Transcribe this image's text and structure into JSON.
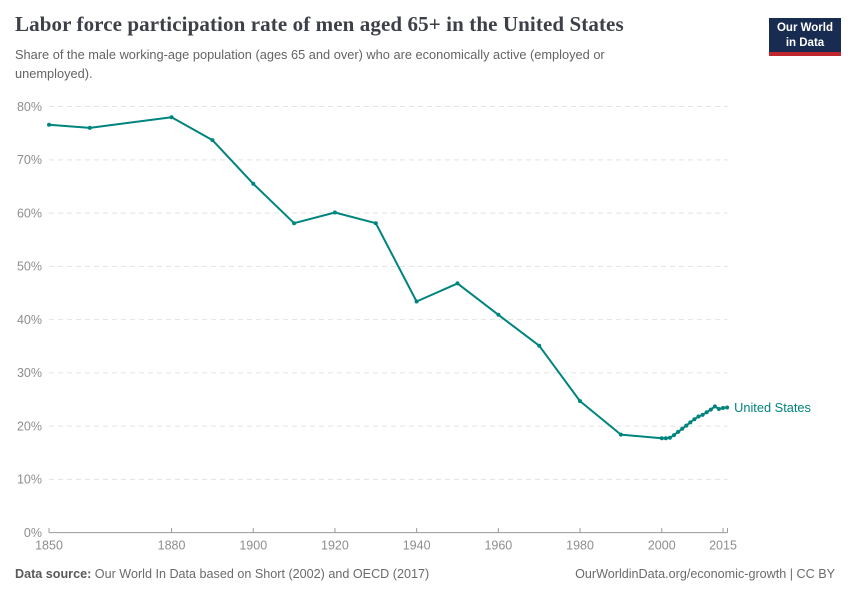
{
  "header": {
    "title": "Labor force participation rate of men aged 65+ in the United States",
    "subtitle": "Share of the male working-age population (ages 65 and over) who are economically active (employed or unemployed)."
  },
  "logo": {
    "line1": "Our World",
    "line2": "in Data",
    "bg_color": "#182c51",
    "accent_color": "#c0262d"
  },
  "chart_data": {
    "type": "line",
    "title": "Labor force participation rate of men aged 65+ in the United States",
    "xlabel": "",
    "ylabel": "",
    "xlim": [
      1850,
      2016
    ],
    "ylim": [
      0,
      80
    ],
    "grid": "horizontal-dashed",
    "legend_position": "end-of-line",
    "x_ticks": [
      1850,
      1880,
      1900,
      1920,
      1940,
      1960,
      1980,
      2000,
      2015
    ],
    "y_ticks": [
      0,
      10,
      20,
      30,
      40,
      50,
      60,
      70,
      80
    ],
    "y_tick_suffix": "%",
    "series": [
      {
        "name": "United States",
        "color": "#00847E",
        "points": [
          [
            1850,
            76.6
          ],
          [
            1860,
            76.0
          ],
          [
            1880,
            78.0
          ],
          [
            1890,
            73.7
          ],
          [
            1900,
            65.5
          ],
          [
            1910,
            58.1
          ],
          [
            1920,
            60.1
          ],
          [
            1930,
            58.1
          ],
          [
            1940,
            43.4
          ],
          [
            1950,
            46.8
          ],
          [
            1960,
            40.9
          ],
          [
            1970,
            35.1
          ],
          [
            1980,
            24.7
          ],
          [
            1990,
            18.4
          ],
          [
            2000,
            17.7
          ],
          [
            2001,
            17.7
          ],
          [
            2002,
            17.8
          ],
          [
            2003,
            18.3
          ],
          [
            2004,
            18.9
          ],
          [
            2005,
            19.5
          ],
          [
            2006,
            20.1
          ],
          [
            2007,
            20.7
          ],
          [
            2008,
            21.3
          ],
          [
            2009,
            21.8
          ],
          [
            2010,
            22.1
          ],
          [
            2011,
            22.6
          ],
          [
            2012,
            23.1
          ],
          [
            2013,
            23.7
          ],
          [
            2014,
            23.2
          ],
          [
            2015,
            23.4
          ],
          [
            2016,
            23.5
          ]
        ]
      }
    ]
  },
  "footer": {
    "datasource_label": "Data source:",
    "datasource_text": " Our World In Data based on Short (2002) and OECD (2017)",
    "link_text": "OurWorldinData.org/economic-growth | CC BY"
  },
  "colors": {
    "line": "#00847E",
    "gridline": "#e2e2e2",
    "axis": "#999999",
    "tick_label": "#8e8e8e",
    "title_text": "#3d4049",
    "subtitle_text": "#646464"
  }
}
